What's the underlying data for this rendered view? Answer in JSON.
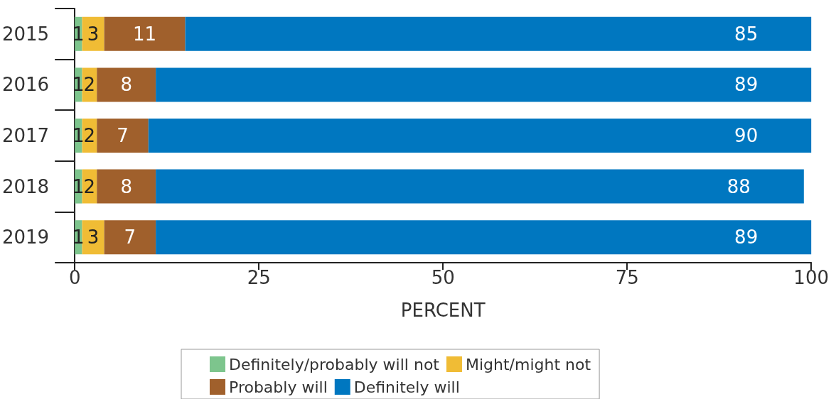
{
  "chart_data": {
    "type": "bar",
    "orientation": "horizontal",
    "stacked": true,
    "data_labels": true,
    "legend": "bottom",
    "grid": false,
    "xlabel": "PERCENT",
    "categories": [
      "2015",
      "2016",
      "2017",
      "2018",
      "2019"
    ],
    "xlim": [
      0,
      100
    ],
    "xticks": [
      0,
      25,
      50,
      75,
      100
    ],
    "series": [
      {
        "name": "Definitely/probably will not",
        "color": "#7dc58d",
        "values": [
          1,
          1,
          1,
          1,
          1
        ]
      },
      {
        "name": "Might/might not",
        "color": "#f0bc35",
        "values": [
          3,
          2,
          2,
          2,
          3
        ]
      },
      {
        "name": "Probably will",
        "color": "#a0602c",
        "values": [
          11,
          8,
          7,
          8,
          7
        ]
      },
      {
        "name": "Definitely will",
        "color": "#0077c0",
        "values": [
          85,
          89,
          90,
          88,
          89
        ]
      }
    ]
  }
}
